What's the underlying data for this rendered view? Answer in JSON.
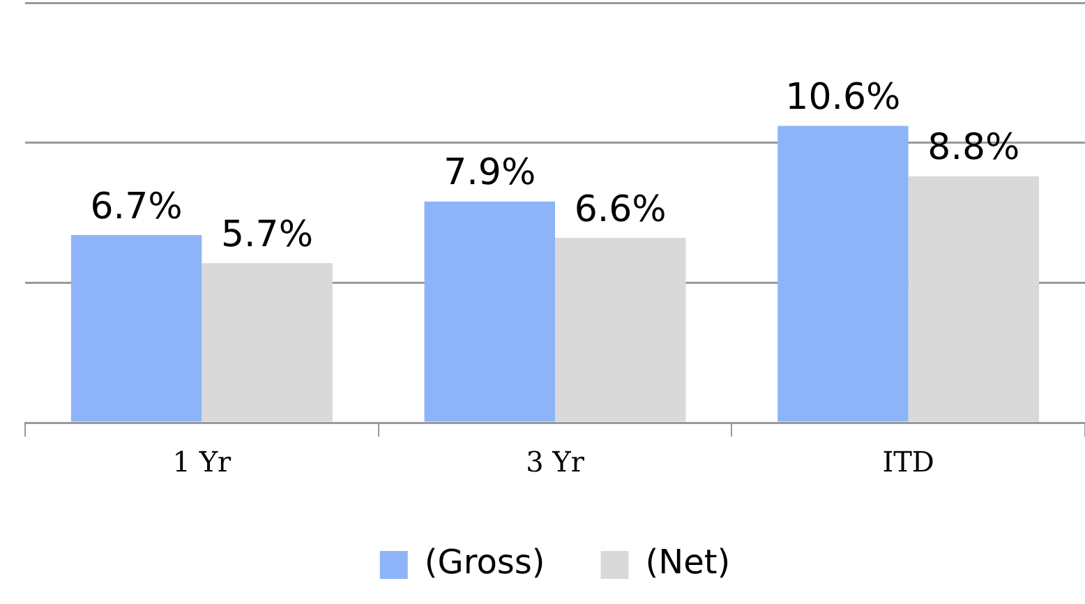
{
  "chart_data": {
    "type": "bar",
    "categories": [
      "1 Yr",
      "3 Yr",
      "ITD"
    ],
    "series": [
      {
        "name": "(Gross)",
        "color": "#8db4f9",
        "values": [
          6.7,
          7.9,
          10.6
        ],
        "value_labels": [
          "6.7%",
          "7.9%",
          "10.6%"
        ]
      },
      {
        "name": "(Net)",
        "color": "#d9d9d9",
        "values": [
          5.7,
          6.6,
          8.8
        ],
        "value_labels": [
          "5.7%",
          "6.6%",
          "8.8%"
        ]
      }
    ],
    "ylim": [
      0,
      15
    ],
    "yticks": [
      {
        "value": 0,
        "label": null
      },
      {
        "value": 5,
        "label": null
      },
      {
        "value": 10,
        "label": null
      },
      {
        "value": 15,
        "label": null
      }
    ],
    "grid": "y",
    "tick_labels": "x",
    "legend": "bottom"
  }
}
